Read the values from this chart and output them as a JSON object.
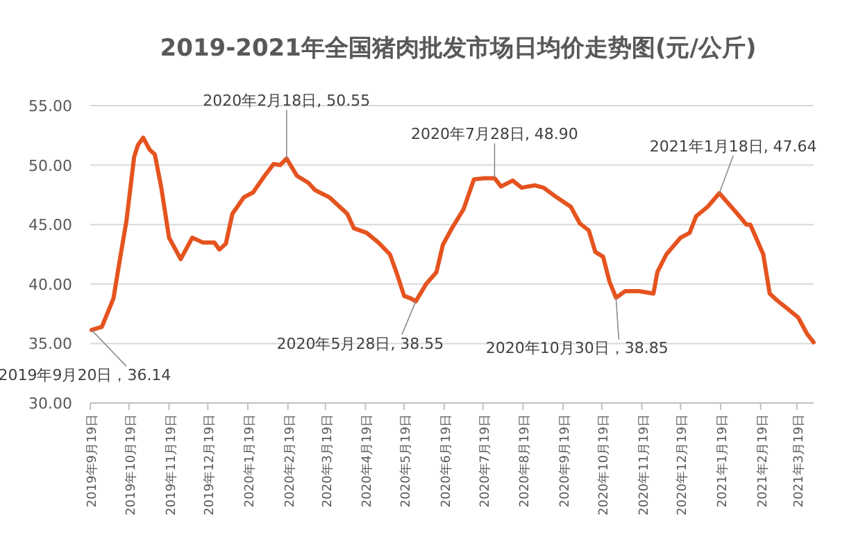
{
  "chart_data": {
    "type": "line",
    "title": "2019-2021年全国猪肉批发市场日均价走势图(元/公斤)",
    "xlim": [
      "2019-09-19",
      "2021-04-01"
    ],
    "xticks": [
      {
        "value": "2019-09-19",
        "label": "2019年9月19日"
      },
      {
        "value": "2019-10-19",
        "label": "2019年10月19日"
      },
      {
        "value": "2019-11-19",
        "label": "2019年11月19日"
      },
      {
        "value": "2019-12-19",
        "label": "2019年12月19日"
      },
      {
        "value": "2020-01-19",
        "label": "2020年1月19日"
      },
      {
        "value": "2020-02-19",
        "label": "2020年2月19日"
      },
      {
        "value": "2020-03-19",
        "label": "2020年3月19日"
      },
      {
        "value": "2020-04-19",
        "label": "2020年4月19日"
      },
      {
        "value": "2020-05-19",
        "label": "2020年5月19日"
      },
      {
        "value": "2020-06-19",
        "label": "2020年6月19日"
      },
      {
        "value": "2020-07-19",
        "label": "2020年7月19日"
      },
      {
        "value": "2020-08-19",
        "label": "2020年8月19日"
      },
      {
        "value": "2020-09-19",
        "label": "2020年9月19日"
      },
      {
        "value": "2020-10-19",
        "label": "2020年10月19日"
      },
      {
        "value": "2020-11-19",
        "label": "2020年11月19日"
      },
      {
        "value": "2020-12-19",
        "label": "2020年12月19日"
      },
      {
        "value": "2021-01-19",
        "label": "2021年1月19日"
      },
      {
        "value": "2021-02-19",
        "label": "2021年2月19日"
      },
      {
        "value": "2021-03-19",
        "label": "2021年3月19日"
      }
    ],
    "ylim": [
      30,
      55
    ],
    "yticks": [
      {
        "value": 30,
        "label": "30.00"
      },
      {
        "value": 35,
        "label": "35.00"
      },
      {
        "value": 40,
        "label": "40.00"
      },
      {
        "value": 45,
        "label": "45.00"
      },
      {
        "value": 50,
        "label": "50.00"
      },
      {
        "value": 55,
        "label": "55.00"
      }
    ],
    "grid": "y",
    "marker": "none",
    "line_style": "solid",
    "series": [
      {
        "color": "#e5531f",
        "x": [
          "2019-09-20",
          "2019-09-28",
          "2019-10-07",
          "2019-10-12",
          "2019-10-17",
          "2019-10-23",
          "2019-10-26",
          "2019-10-30",
          "2019-11-04",
          "2019-11-08",
          "2019-11-13",
          "2019-11-19",
          "2019-11-28",
          "2019-12-07",
          "2019-12-15",
          "2019-12-24",
          "2019-12-28",
          "2020-01-02",
          "2020-01-07",
          "2020-01-16",
          "2020-01-23",
          "2020-02-01",
          "2020-02-08",
          "2020-02-13",
          "2020-02-18",
          "2020-02-26",
          "2020-03-06",
          "2020-03-11",
          "2020-03-22",
          "2020-04-05",
          "2020-04-10",
          "2020-04-20",
          "2020-04-29",
          "2020-05-08",
          "2020-05-13",
          "2020-05-19",
          "2020-05-24",
          "2020-05-28",
          "2020-06-05",
          "2020-06-13",
          "2020-06-18",
          "2020-06-25",
          "2020-07-04",
          "2020-07-12",
          "2020-07-20",
          "2020-07-28",
          "2020-08-02",
          "2020-08-11",
          "2020-08-18",
          "2020-08-28",
          "2020-09-04",
          "2020-09-14",
          "2020-09-25",
          "2020-10-02",
          "2020-10-09",
          "2020-10-14",
          "2020-10-20",
          "2020-10-25",
          "2020-10-30",
          "2020-11-06",
          "2020-11-17",
          "2020-11-28",
          "2020-12-01",
          "2020-12-08",
          "2020-12-19",
          "2020-12-26",
          "2020-12-31",
          "2021-01-09",
          "2021-01-18",
          "2021-01-24",
          "2021-02-01",
          "2021-02-08",
          "2021-02-11",
          "2021-02-21",
          "2021-02-26",
          "2021-03-04",
          "2021-03-11",
          "2021-03-20",
          "2021-03-27",
          "2021-04-01"
        ],
        "values": [
          36.14,
          36.4,
          38.8,
          42.1,
          45.3,
          50.7,
          51.7,
          52.3,
          51.3,
          50.9,
          48.1,
          43.9,
          42.1,
          43.9,
          43.5,
          43.5,
          42.9,
          43.4,
          45.9,
          47.3,
          47.7,
          49.1,
          50.1,
          50.0,
          50.55,
          49.1,
          48.5,
          47.9,
          47.3,
          45.9,
          44.7,
          44.3,
          43.5,
          42.5,
          41.0,
          39.0,
          38.8,
          38.55,
          40.0,
          41.0,
          43.3,
          44.7,
          46.3,
          48.8,
          48.9,
          48.9,
          48.2,
          48.7,
          48.1,
          48.3,
          48.1,
          47.3,
          46.5,
          45.1,
          44.5,
          42.7,
          42.3,
          40.2,
          38.85,
          39.4,
          39.4,
          39.2,
          41.0,
          42.5,
          43.9,
          44.3,
          45.7,
          46.5,
          47.64,
          46.9,
          45.9,
          45.0,
          45.0,
          42.5,
          39.2,
          38.6,
          38.0,
          37.2,
          35.8,
          35.1
        ]
      }
    ],
    "annotations": [
      {
        "text": "2019年9月20日，36.14",
        "x": "2019-09-20",
        "y": 36.14
      },
      {
        "text": "2020年2月18日, 50.55",
        "x": "2020-02-18",
        "y": 50.55
      },
      {
        "text": "2020年5月28日, 38.55",
        "x": "2020-05-28",
        "y": 38.55
      },
      {
        "text": "2020年7月28日, 48.90",
        "x": "2020-07-28",
        "y": 48.9
      },
      {
        "text": "2020年10月30日，38.85",
        "x": "2020-10-30",
        "y": 38.85
      },
      {
        "text": "2021年1月18日, 47.64",
        "x": "2021-01-18",
        "y": 47.64
      }
    ]
  }
}
